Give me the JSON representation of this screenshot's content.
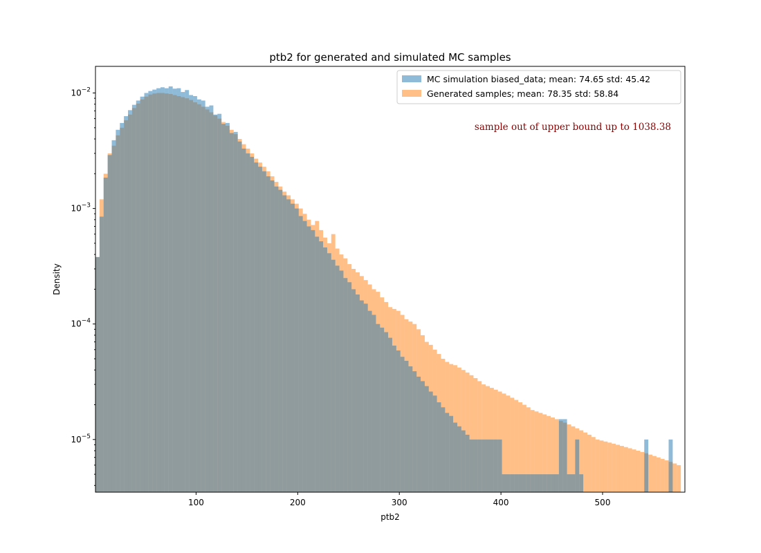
{
  "chart_data": {
    "type": "bar",
    "title": "ptb2 for generated and simulated MC samples",
    "xlabel": "ptb2",
    "ylabel": "Density",
    "xlim": [
      1,
      581
    ],
    "ylim": [
      3.5e-06,
      0.017
    ],
    "yscale": "log",
    "bin_width": 4,
    "x_start": 1,
    "x_ticks": [
      100,
      200,
      300,
      400,
      500
    ],
    "y_ticks": [
      {
        "value": 1e-05,
        "base": "10",
        "exp": "−5"
      },
      {
        "value": 0.0001,
        "base": "10",
        "exp": "−4"
      },
      {
        "value": 0.001,
        "base": "10",
        "exp": "−3"
      },
      {
        "value": 0.01,
        "base": "10",
        "exp": "−2"
      }
    ],
    "grid": false,
    "legend_position": "top-right",
    "annotation": {
      "text": "sample out of upper bound up to 1038.38",
      "color": "#8b0000"
    },
    "series": [
      {
        "name": "MC simulation biased_data; mean: 74.65 std: 45.42",
        "color": "#1f77b4",
        "opacity": 0.5,
        "values": [
          0.00038,
          0.00085,
          0.00185,
          0.0029,
          0.0039,
          0.0048,
          0.0055,
          0.0063,
          0.0071,
          0.0079,
          0.0086,
          0.0093,
          0.01,
          0.0104,
          0.0107,
          0.011,
          0.0112,
          0.011,
          0.0114,
          0.0109,
          0.011,
          0.0102,
          0.0106,
          0.0096,
          0.0094,
          0.0088,
          0.0086,
          0.0076,
          0.0078,
          0.0065,
          0.0066,
          0.0054,
          0.0055,
          0.0045,
          0.0046,
          0.0038,
          0.0033,
          0.003,
          0.0028,
          0.0025,
          0.0023,
          0.0021,
          0.0019,
          0.00175,
          0.00155,
          0.00145,
          0.0013,
          0.0012,
          0.0011,
          0.001,
          0.00086,
          0.00078,
          0.0007,
          0.00065,
          0.00057,
          0.00052,
          0.00046,
          0.00041,
          0.00036,
          0.00032,
          0.00029,
          0.00025,
          0.00023,
          0.0002,
          0.00018,
          0.00016,
          0.00015,
          0.00013,
          0.00012,
          0.0001,
          9.3e-05,
          8.5e-05,
          7.6e-05,
          6.5e-05,
          5.9e-05,
          5.2e-05,
          4.8e-05,
          4.3e-05,
          3.9e-05,
          3.5e-05,
          3.2e-05,
          2.9e-05,
          2.6e-05,
          2.4e-05,
          2.1e-05,
          1.9e-05,
          1.7e-05,
          1.6e-05,
          1.4e-05,
          1.3e-05,
          1.2e-05,
          1.1e-05,
          1e-05,
          1e-05,
          1e-05,
          1e-05,
          1e-05,
          1e-05,
          1e-05,
          1e-05,
          5e-06,
          5e-06,
          5e-06,
          5e-06,
          5e-06,
          5e-06,
          5e-06,
          5e-06,
          5e-06,
          5e-06,
          5e-06,
          5e-06,
          5e-06,
          5e-06,
          1.5e-05,
          1.5e-05,
          5e-06,
          5e-06,
          1e-05,
          5e-06,
          0,
          0,
          0,
          0,
          0,
          0,
          0,
          0,
          0,
          0,
          0,
          0,
          0,
          0,
          0,
          1e-05,
          0,
          0,
          0,
          0,
          0,
          1e-05
        ]
      },
      {
        "name": "Generated samples; mean: 78.35 std: 58.84",
        "color": "#ff7f0e",
        "opacity": 0.5,
        "values": [
          0.00038,
          0.0012,
          0.002,
          0.003,
          0.0035,
          0.0043,
          0.005,
          0.0058,
          0.0065,
          0.0074,
          0.0081,
          0.0088,
          0.0093,
          0.0097,
          0.0099,
          0.01,
          0.01,
          0.0099,
          0.0098,
          0.0096,
          0.0094,
          0.0092,
          0.009,
          0.0087,
          0.0083,
          0.008,
          0.0076,
          0.0072,
          0.0068,
          0.0064,
          0.006,
          0.0056,
          0.0052,
          0.0048,
          0.0044,
          0.004,
          0.0036,
          0.0033,
          0.003,
          0.0027,
          0.0025,
          0.0023,
          0.0021,
          0.0019,
          0.0017,
          0.00155,
          0.0014,
          0.0013,
          0.0012,
          0.0011,
          0.001,
          0.0009,
          0.0008,
          0.00072,
          0.00078,
          0.00065,
          0.00056,
          0.0005,
          0.0006,
          0.00045,
          0.0004,
          0.00037,
          0.00033,
          0.0003,
          0.00028,
          0.00026,
          0.00024,
          0.00022,
          0.0002,
          0.00019,
          0.00017,
          0.000155,
          0.00014,
          0.000135,
          0.00013,
          0.00012,
          0.00011,
          0.000105,
          0.0001,
          9e-05,
          8e-05,
          7e-05,
          6.6e-05,
          6e-05,
          5.5e-05,
          5e-05,
          4.7e-05,
          4.5e-05,
          4.4e-05,
          4.2e-05,
          4e-05,
          3.8e-05,
          3.6e-05,
          3.4e-05,
          3.2e-05,
          3e-05,
          2.9e-05,
          2.8e-05,
          2.7e-05,
          2.6e-05,
          2.5e-05,
          2.4e-05,
          2.3e-05,
          2.2e-05,
          2.1e-05,
          2e-05,
          1.9e-05,
          1.8e-05,
          1.75e-05,
          1.7e-05,
          1.65e-05,
          1.6e-05,
          1.55e-05,
          1.5e-05,
          1.45e-05,
          1.4e-05,
          1.35e-05,
          1.3e-05,
          1.25e-05,
          1.2e-05,
          1.15e-05,
          1.1e-05,
          1.05e-05,
          1e-05,
          9.8e-06,
          9.6e-06,
          9.4e-06,
          9.2e-06,
          9e-06,
          8.8e-06,
          8.6e-06,
          8.4e-06,
          8.2e-06,
          8e-06,
          7.8e-06,
          7.6e-06,
          7.4e-06,
          7.2e-06,
          7e-06,
          6.8e-06,
          6.6e-06,
          6.4e-06,
          6.2e-06,
          6e-06
        ]
      }
    ]
  }
}
